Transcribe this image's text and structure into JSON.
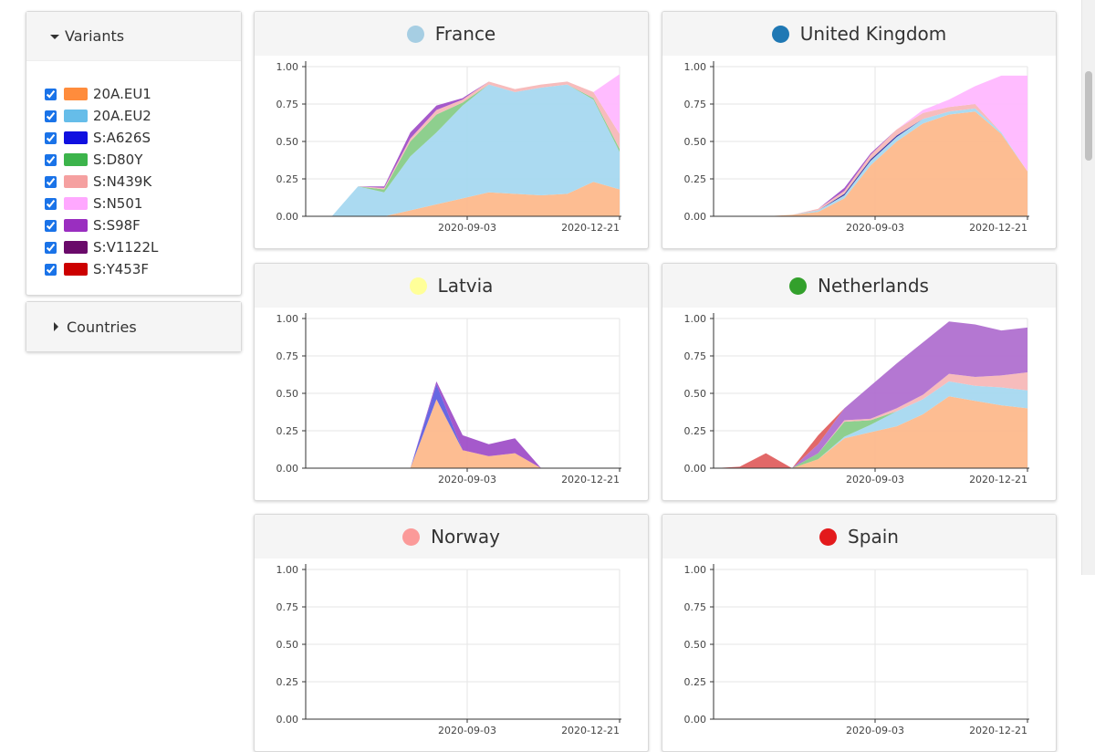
{
  "sidebar": {
    "variants_title": "Variants",
    "countries_title": "Countries",
    "variants": [
      {
        "label": "20A.EU1",
        "color": "#ff8c3c",
        "checked": true
      },
      {
        "label": "20A.EU2",
        "color": "#66bde9",
        "checked": true
      },
      {
        "label": "S:A626S",
        "color": "#1010e0",
        "checked": true
      },
      {
        "label": "S:D80Y",
        "color": "#3cb44b",
        "checked": true
      },
      {
        "label": "S:N439K",
        "color": "#f5a0a0",
        "checked": true
      },
      {
        "label": "S:N501",
        "color": "#ffa8ff",
        "checked": true
      },
      {
        "label": "S:S98F",
        "color": "#9a2ec0",
        "checked": true
      },
      {
        "label": "S:V1122L",
        "color": "#6a0a6a",
        "checked": true
      },
      {
        "label": "S:Y453F",
        "color": "#cc0000",
        "checked": true
      }
    ]
  },
  "chart_data": [
    {
      "type": "area",
      "title": "France",
      "dot_color": "#a6cee3",
      "x": [
        0,
        3,
        6,
        9,
        12,
        15,
        18,
        21,
        24,
        27,
        30,
        33,
        36
      ],
      "x_ticks": [
        {
          "value": 0,
          "label": "2020-09-03"
        },
        {
          "value": 0,
          "label": "2020-12-21"
        }
      ],
      "x_tick_labels": [
        "2020-09-03",
        "2020-12-21"
      ],
      "y_ticks": [
        "1.00",
        "0.75",
        "0.50",
        "0.25",
        "0.00"
      ],
      "ylim": [
        0,
        1
      ],
      "series": [
        {
          "key": "20A.EU1",
          "color": "#fdb98c",
          "values": [
            0,
            0,
            0,
            0,
            0.04,
            0.08,
            0.12,
            0.16,
            0.15,
            0.14,
            0.15,
            0.23,
            0.18
          ]
        },
        {
          "key": "20A.EU2",
          "color": "#a6d8f0",
          "values": [
            0,
            0,
            0.2,
            0.16,
            0.36,
            0.48,
            0.62,
            0.72,
            0.68,
            0.72,
            0.73,
            0.55,
            0.25
          ]
        },
        {
          "key": "S:D80Y",
          "color": "#88cc88",
          "values": [
            0,
            0,
            0,
            0.02,
            0.1,
            0.12,
            0.02,
            0,
            0,
            0,
            0,
            0.01,
            0.02
          ]
        },
        {
          "key": "S:N439K",
          "color": "#f7b8b8",
          "values": [
            0,
            0,
            0,
            0.01,
            0.02,
            0.03,
            0.02,
            0.02,
            0.02,
            0.02,
            0.02,
            0.04,
            0.1
          ]
        },
        {
          "key": "S:N501",
          "color": "#ffb8ff",
          "values": [
            0,
            0,
            0,
            0,
            0,
            0,
            0,
            0,
            0,
            0,
            0,
            0,
            0.4
          ]
        },
        {
          "key": "S:S98F",
          "color": "#a050c8",
          "values": [
            0,
            0,
            0,
            0.01,
            0.04,
            0.03,
            0.01,
            0,
            0,
            0,
            0,
            0,
            0
          ]
        }
      ]
    },
    {
      "type": "area",
      "title": "United Kingdom",
      "dot_color": "#1f78b4",
      "x": [
        0,
        3,
        6,
        9,
        12,
        15,
        18,
        21,
        24,
        27,
        30,
        33,
        36
      ],
      "x_tick_labels": [
        "2020-09-03",
        "2020-12-21"
      ],
      "y_ticks": [
        "1.00",
        "0.75",
        "0.50",
        "0.25",
        "0.00"
      ],
      "ylim": [
        0,
        1
      ],
      "series": [
        {
          "key": "20A.EU1",
          "color": "#fdb98c",
          "values": [
            0,
            0,
            0,
            0.01,
            0.03,
            0.12,
            0.34,
            0.5,
            0.62,
            0.68,
            0.7,
            0.55,
            0.3
          ]
        },
        {
          "key": "20A.EU2",
          "color": "#a6d8f0",
          "values": [
            0,
            0,
            0,
            0,
            0.01,
            0.02,
            0.03,
            0.03,
            0.03,
            0.02,
            0.02,
            0.01,
            0
          ]
        },
        {
          "key": "S:A626S",
          "color": "#3030a0",
          "values": [
            0,
            0,
            0,
            0,
            0,
            0.01,
            0.01,
            0.01,
            0,
            0,
            0,
            0,
            0
          ]
        },
        {
          "key": "S:N439K",
          "color": "#f7b8b8",
          "values": [
            0,
            0,
            0,
            0,
            0.01,
            0.02,
            0.03,
            0.04,
            0.04,
            0.03,
            0.03,
            0,
            0
          ]
        },
        {
          "key": "S:N501",
          "color": "#ffb8ff",
          "values": [
            0,
            0,
            0,
            0,
            0,
            0,
            0,
            0,
            0.02,
            0.05,
            0.12,
            0.38,
            0.64
          ]
        },
        {
          "key": "S:S98F",
          "color": "#a050c8",
          "values": [
            0,
            0,
            0,
            0,
            0,
            0.02,
            0.01,
            0,
            0,
            0,
            0,
            0,
            0
          ]
        }
      ]
    },
    {
      "type": "area",
      "title": "Latvia",
      "dot_color": "#ffff99",
      "x": [
        0,
        3,
        6,
        9,
        12,
        15,
        18,
        21,
        24,
        27,
        30,
        33,
        36
      ],
      "x_tick_labels": [
        "2020-09-03",
        "2020-12-21"
      ],
      "y_ticks": [
        "1.00",
        "0.75",
        "0.50",
        "0.25",
        "0.00"
      ],
      "ylim": [
        0,
        1
      ],
      "series": [
        {
          "key": "20A.EU1",
          "color": "#fdb98c",
          "values": [
            0,
            0,
            0,
            0,
            0,
            0.46,
            0.12,
            0.08,
            0.1,
            0,
            0,
            0,
            0
          ]
        },
        {
          "key": "S:A626S",
          "color": "#6060e0",
          "values": [
            0,
            0,
            0,
            0,
            0,
            0.1,
            0,
            0,
            0,
            0,
            0,
            0,
            0
          ]
        },
        {
          "key": "S:S98F",
          "color": "#a050c8",
          "values": [
            0,
            0,
            0,
            0,
            0,
            0.02,
            0.1,
            0.08,
            0.1,
            0,
            0,
            0,
            0
          ]
        }
      ]
    },
    {
      "type": "area",
      "title": "Netherlands",
      "dot_color": "#33a02c",
      "x": [
        0,
        3,
        6,
        9,
        12,
        15,
        18,
        21,
        24,
        27,
        30,
        33,
        36
      ],
      "x_tick_labels": [
        "2020-09-03",
        "2020-12-21"
      ],
      "y_ticks": [
        "1.00",
        "0.75",
        "0.50",
        "0.25",
        "0.00"
      ],
      "ylim": [
        0,
        1
      ],
      "series": [
        {
          "key": "20A.EU1",
          "color": "#fdb98c",
          "values": [
            0,
            0,
            0,
            0,
            0.06,
            0.2,
            0.24,
            0.28,
            0.36,
            0.48,
            0.45,
            0.42,
            0.4
          ]
        },
        {
          "key": "20A.EU2",
          "color": "#a6d8f0",
          "values": [
            0,
            0,
            0,
            0,
            0,
            0.01,
            0.05,
            0.1,
            0.1,
            0.1,
            0.1,
            0.12,
            0.12
          ]
        },
        {
          "key": "S:D80Y",
          "color": "#88cc88",
          "values": [
            0,
            0,
            0,
            0,
            0.04,
            0.1,
            0.03,
            0,
            0,
            0,
            0,
            0,
            0
          ]
        },
        {
          "key": "S:N439K",
          "color": "#f7b8b8",
          "values": [
            0,
            0,
            0,
            0,
            0,
            0.01,
            0.01,
            0.02,
            0.03,
            0.05,
            0.06,
            0.08,
            0.12
          ]
        },
        {
          "key": "S:S98F",
          "color": "#b070d0",
          "values": [
            0,
            0,
            0,
            0,
            0.06,
            0.08,
            0.22,
            0.3,
            0.35,
            0.35,
            0.35,
            0.3,
            0.3
          ]
        },
        {
          "key": "S:Y453F",
          "color": "#e06060",
          "values": [
            0,
            0.01,
            0.1,
            0,
            0.06,
            0,
            0,
            0,
            0,
            0,
            0,
            0,
            0
          ]
        }
      ]
    },
    {
      "type": "area",
      "title": "Norway",
      "dot_color": "#fb9a99",
      "x": [
        0,
        3,
        6,
        9,
        12,
        15,
        18,
        21,
        24,
        27,
        30,
        33,
        36
      ],
      "x_tick_labels": [
        "2020-09-03",
        "2020-12-21"
      ],
      "y_ticks": [
        "1.00",
        "0.75",
        "0.50",
        "0.25",
        "0.00"
      ],
      "ylim": [
        0,
        1
      ],
      "series": []
    },
    {
      "type": "area",
      "title": "Spain",
      "dot_color": "#e31a1c",
      "x": [
        0,
        3,
        6,
        9,
        12,
        15,
        18,
        21,
        24,
        27,
        30,
        33,
        36
      ],
      "x_tick_labels": [
        "2020-09-03",
        "2020-12-21"
      ],
      "y_ticks": [
        "1.00",
        "0.75",
        "0.50",
        "0.25",
        "0.00"
      ],
      "ylim": [
        0,
        1
      ],
      "series": []
    }
  ]
}
